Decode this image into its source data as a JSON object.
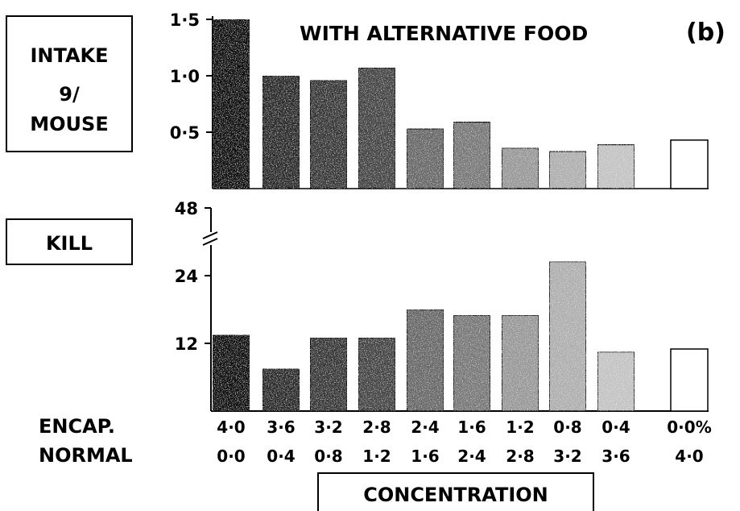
{
  "chart_data": [
    {
      "type": "bar",
      "title": "WITH ALTERNATIVE FOOD",
      "panel_label": "(b)",
      "ylabel_lines": [
        "INTAKE",
        "9/",
        "MOUSE"
      ],
      "ylim": [
        0,
        1.5
      ],
      "yticks": [
        0.5,
        1.0,
        1.5
      ],
      "ytick_labels": [
        "0·5",
        "1·0",
        "1·5"
      ],
      "categories": [
        "4·0 / 0·0",
        "3·6 / 0·4",
        "3·2 / 0·8",
        "2·8 / 1·2",
        "2·4 / 1·6",
        "1·6 / 2·4",
        "1·2 / 2·8",
        "0·8 / 3·2",
        "0·4 / 3·6",
        "0·0% / 4·0"
      ],
      "values": [
        1.5,
        1.0,
        0.96,
        1.07,
        0.53,
        0.59,
        0.36,
        0.33,
        0.39,
        0.43
      ],
      "grid": false
    },
    {
      "type": "bar",
      "ylabel": "KILL",
      "ylim": [
        0,
        48
      ],
      "axis_break": true,
      "yticks": [
        12,
        24,
        48
      ],
      "ytick_labels": [
        "12",
        "24",
        "48"
      ],
      "categories": [
        "4·0 / 0·0",
        "3·6 / 0·4",
        "3·2 / 0·8",
        "2·8 / 1·2",
        "2·4 / 1·6",
        "1·6 / 2·4",
        "1·2 / 2·8",
        "0·8 / 3·2",
        "0·4 / 3·6",
        "0·0% / 4·0"
      ],
      "values": [
        13.5,
        7.5,
        13,
        13,
        18,
        17,
        17,
        26.5,
        10.5,
        11
      ],
      "grid": false
    }
  ],
  "x_axis": {
    "row_labels": [
      "ENCAP.",
      "NORMAL"
    ],
    "encap": [
      "4·0",
      "3·6",
      "3·2",
      "2·8",
      "2·4",
      "1·6",
      "1·2",
      "0·8",
      "0·4",
      "0·0%"
    ],
    "normal": [
      "0·0",
      "0·4",
      "0·8",
      "1·2",
      "1·6",
      "2·4",
      "2·8",
      "3·2",
      "3·6",
      "4·0"
    ],
    "xlabel": "CONCENTRATION"
  },
  "style": {
    "bar_colors": [
      "#111111",
      "#2a2a2a",
      "#383838",
      "#454545",
      "#6a6a6a",
      "#7a7a7a",
      "#9a9a9a",
      "#b0b0b0",
      "#c4c4c4",
      "#ffffff"
    ],
    "stroke": "#000000"
  }
}
